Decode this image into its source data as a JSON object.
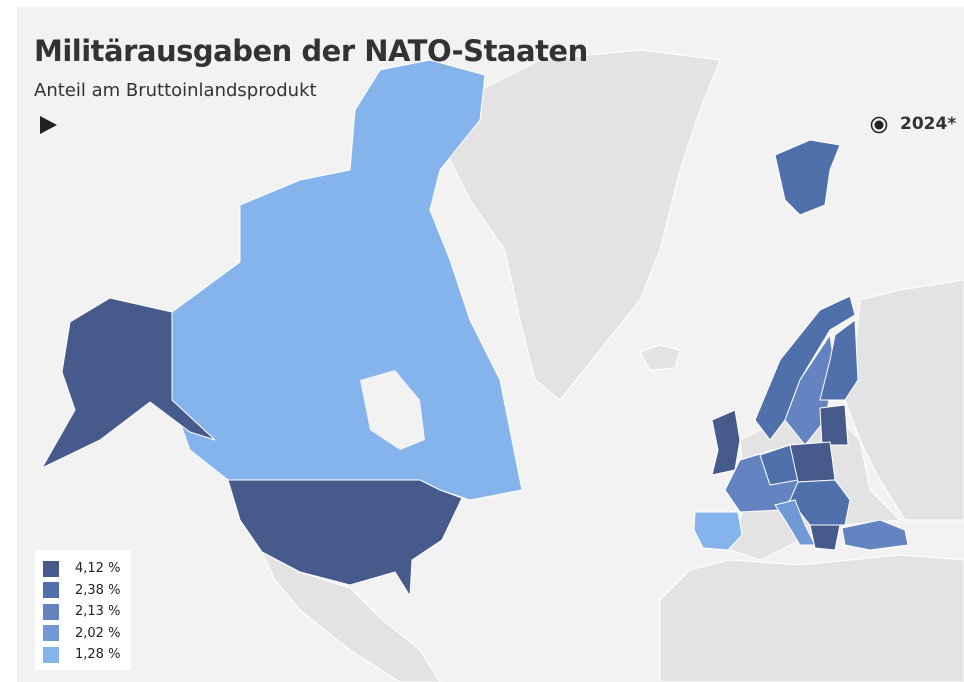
{
  "header": {
    "title": "Militärausgaben der NATO-Staaten",
    "subtitle": "Anteil am Bruttoinlandsprodukt"
  },
  "timeline": {
    "label": "2024*"
  },
  "legend": {
    "items": [
      {
        "label": "4,12 %",
        "color": "#465a8c"
      },
      {
        "label": "2,38 %",
        "color": "#5070ab"
      },
      {
        "label": "2,13 %",
        "color": "#6384c0"
      },
      {
        "label": "2,02 %",
        "color": "#7199d6"
      },
      {
        "label": "1,28 %",
        "color": "#85b3ec"
      }
    ]
  }
}
